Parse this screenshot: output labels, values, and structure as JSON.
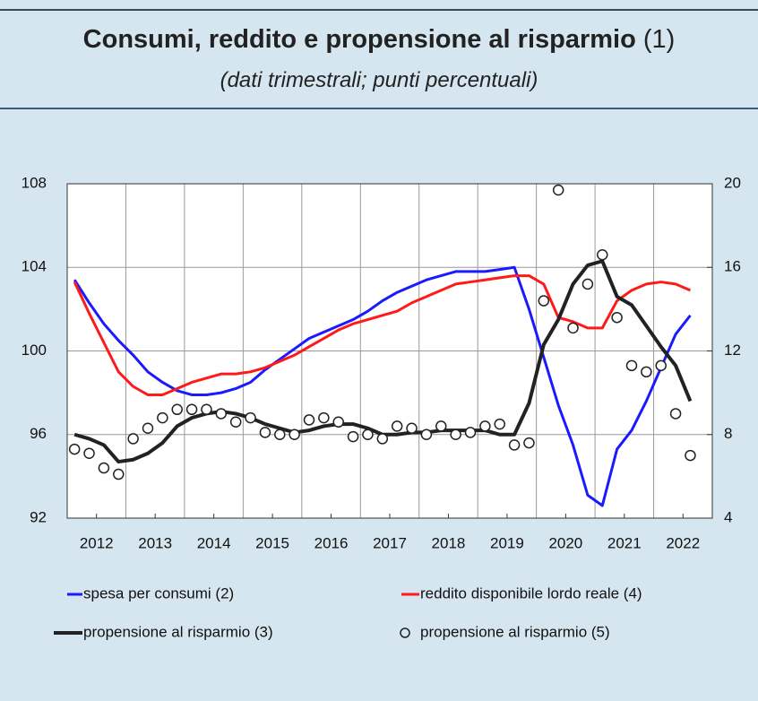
{
  "chart_data": {
    "type": "line",
    "title": "Consumi, reddito e propensione al risparmio",
    "title_note": "(1)",
    "subtitle": "(dati trimestrali; punti percentuali)",
    "x": [
      2012.125,
      2012.375,
      2012.625,
      2012.875,
      2013.125,
      2013.375,
      2013.625,
      2013.875,
      2014.125,
      2014.375,
      2014.625,
      2014.875,
      2015.125,
      2015.375,
      2015.625,
      2015.875,
      2016.125,
      2016.375,
      2016.625,
      2016.875,
      2017.125,
      2017.375,
      2017.625,
      2017.875,
      2018.125,
      2018.375,
      2018.625,
      2018.875,
      2019.125,
      2019.375,
      2019.625,
      2019.875,
      2020.125,
      2020.375,
      2020.625,
      2020.875,
      2021.125,
      2021.375,
      2021.625,
      2021.875,
      2022.125,
      2022.375,
      2022.625
    ],
    "xlim": [
      2012,
      2023
    ],
    "xticks": [
      {
        "value": 2012.5,
        "label": "2012"
      },
      {
        "value": 2013.5,
        "label": "2013"
      },
      {
        "value": 2014.5,
        "label": "2014"
      },
      {
        "value": 2015.5,
        "label": "2015"
      },
      {
        "value": 2016.5,
        "label": "2016"
      },
      {
        "value": 2017.5,
        "label": "2017"
      },
      {
        "value": 2018.5,
        "label": "2018"
      },
      {
        "value": 2019.5,
        "label": "2019"
      },
      {
        "value": 2020.5,
        "label": "2020"
      },
      {
        "value": 2021.5,
        "label": "2021"
      },
      {
        "value": 2022.5,
        "label": "2022"
      }
    ],
    "xgrid": [
      2013,
      2014,
      2015,
      2016,
      2017,
      2018,
      2019,
      2020,
      2021,
      2022
    ],
    "ylim": [
      92,
      108
    ],
    "yticks": [
      92,
      96,
      100,
      104,
      108
    ],
    "y2lim": [
      4,
      20
    ],
    "y2ticks": [
      4,
      8,
      12,
      16,
      20
    ],
    "grid": true,
    "series": [
      {
        "name": "spesa per consumi (2)",
        "color": "#1a1aff",
        "mark": "line",
        "values": [
          103.4,
          102.3,
          101.3,
          100.5,
          99.8,
          99.0,
          98.5,
          98.1,
          97.9,
          97.9,
          98.0,
          98.2,
          98.5,
          99.1,
          99.6,
          100.1,
          100.6,
          100.9,
          101.2,
          101.5,
          101.9,
          102.4,
          102.8,
          103.1,
          103.4,
          103.6,
          103.8,
          103.8,
          103.8,
          103.9,
          104.0,
          102.0,
          99.7,
          97.4,
          95.5,
          93.1,
          92.6,
          95.3,
          96.2,
          97.6,
          99.2,
          100.8,
          101.7
        ]
      },
      {
        "name": "reddito disponibile lordo reale (4)",
        "color": "#ff1a1a",
        "mark": "line",
        "values": [
          103.3,
          101.8,
          100.4,
          99.0,
          98.3,
          97.9,
          97.9,
          98.2,
          98.5,
          98.7,
          98.9,
          98.9,
          99.0,
          99.2,
          99.5,
          99.8,
          100.2,
          100.6,
          101.0,
          101.3,
          101.5,
          101.7,
          101.9,
          102.3,
          102.6,
          102.9,
          103.2,
          103.3,
          103.4,
          103.5,
          103.6,
          103.6,
          103.2,
          101.6,
          101.4,
          101.1,
          101.1,
          102.4,
          102.9,
          103.2,
          103.3,
          103.2,
          102.9
        ]
      },
      {
        "name": "propensione al risparmio (3)",
        "color": "#222222",
        "mark": "line",
        "axis": "y2",
        "values": [
          8.0,
          7.8,
          7.5,
          6.7,
          6.8,
          7.1,
          7.6,
          8.4,
          8.8,
          9.0,
          9.1,
          9.0,
          8.8,
          8.5,
          8.3,
          8.1,
          8.2,
          8.4,
          8.5,
          8.5,
          8.3,
          8.0,
          8.0,
          8.1,
          8.1,
          8.2,
          8.2,
          8.2,
          8.2,
          8.0,
          8.0,
          9.5,
          12.3,
          13.5,
          15.2,
          16.1,
          16.3,
          14.6,
          14.2,
          13.2,
          12.2,
          11.3,
          9.6
        ]
      },
      {
        "name": "propensione al risparmio (5)",
        "color": "#222222",
        "mark": "circle",
        "axis": "y2",
        "values": [
          7.3,
          7.1,
          6.4,
          6.1,
          7.8,
          8.3,
          8.8,
          9.2,
          9.2,
          9.2,
          9.0,
          8.6,
          8.8,
          8.1,
          8.0,
          8.0,
          8.7,
          8.8,
          8.6,
          7.9,
          8.0,
          7.8,
          8.4,
          8.3,
          8.0,
          8.4,
          8.0,
          8.1,
          8.4,
          8.5,
          7.5,
          7.6,
          14.4,
          19.7,
          13.1,
          15.2,
          16.6,
          13.6,
          11.3,
          11.0,
          11.3,
          9.0,
          7.0
        ]
      }
    ]
  }
}
